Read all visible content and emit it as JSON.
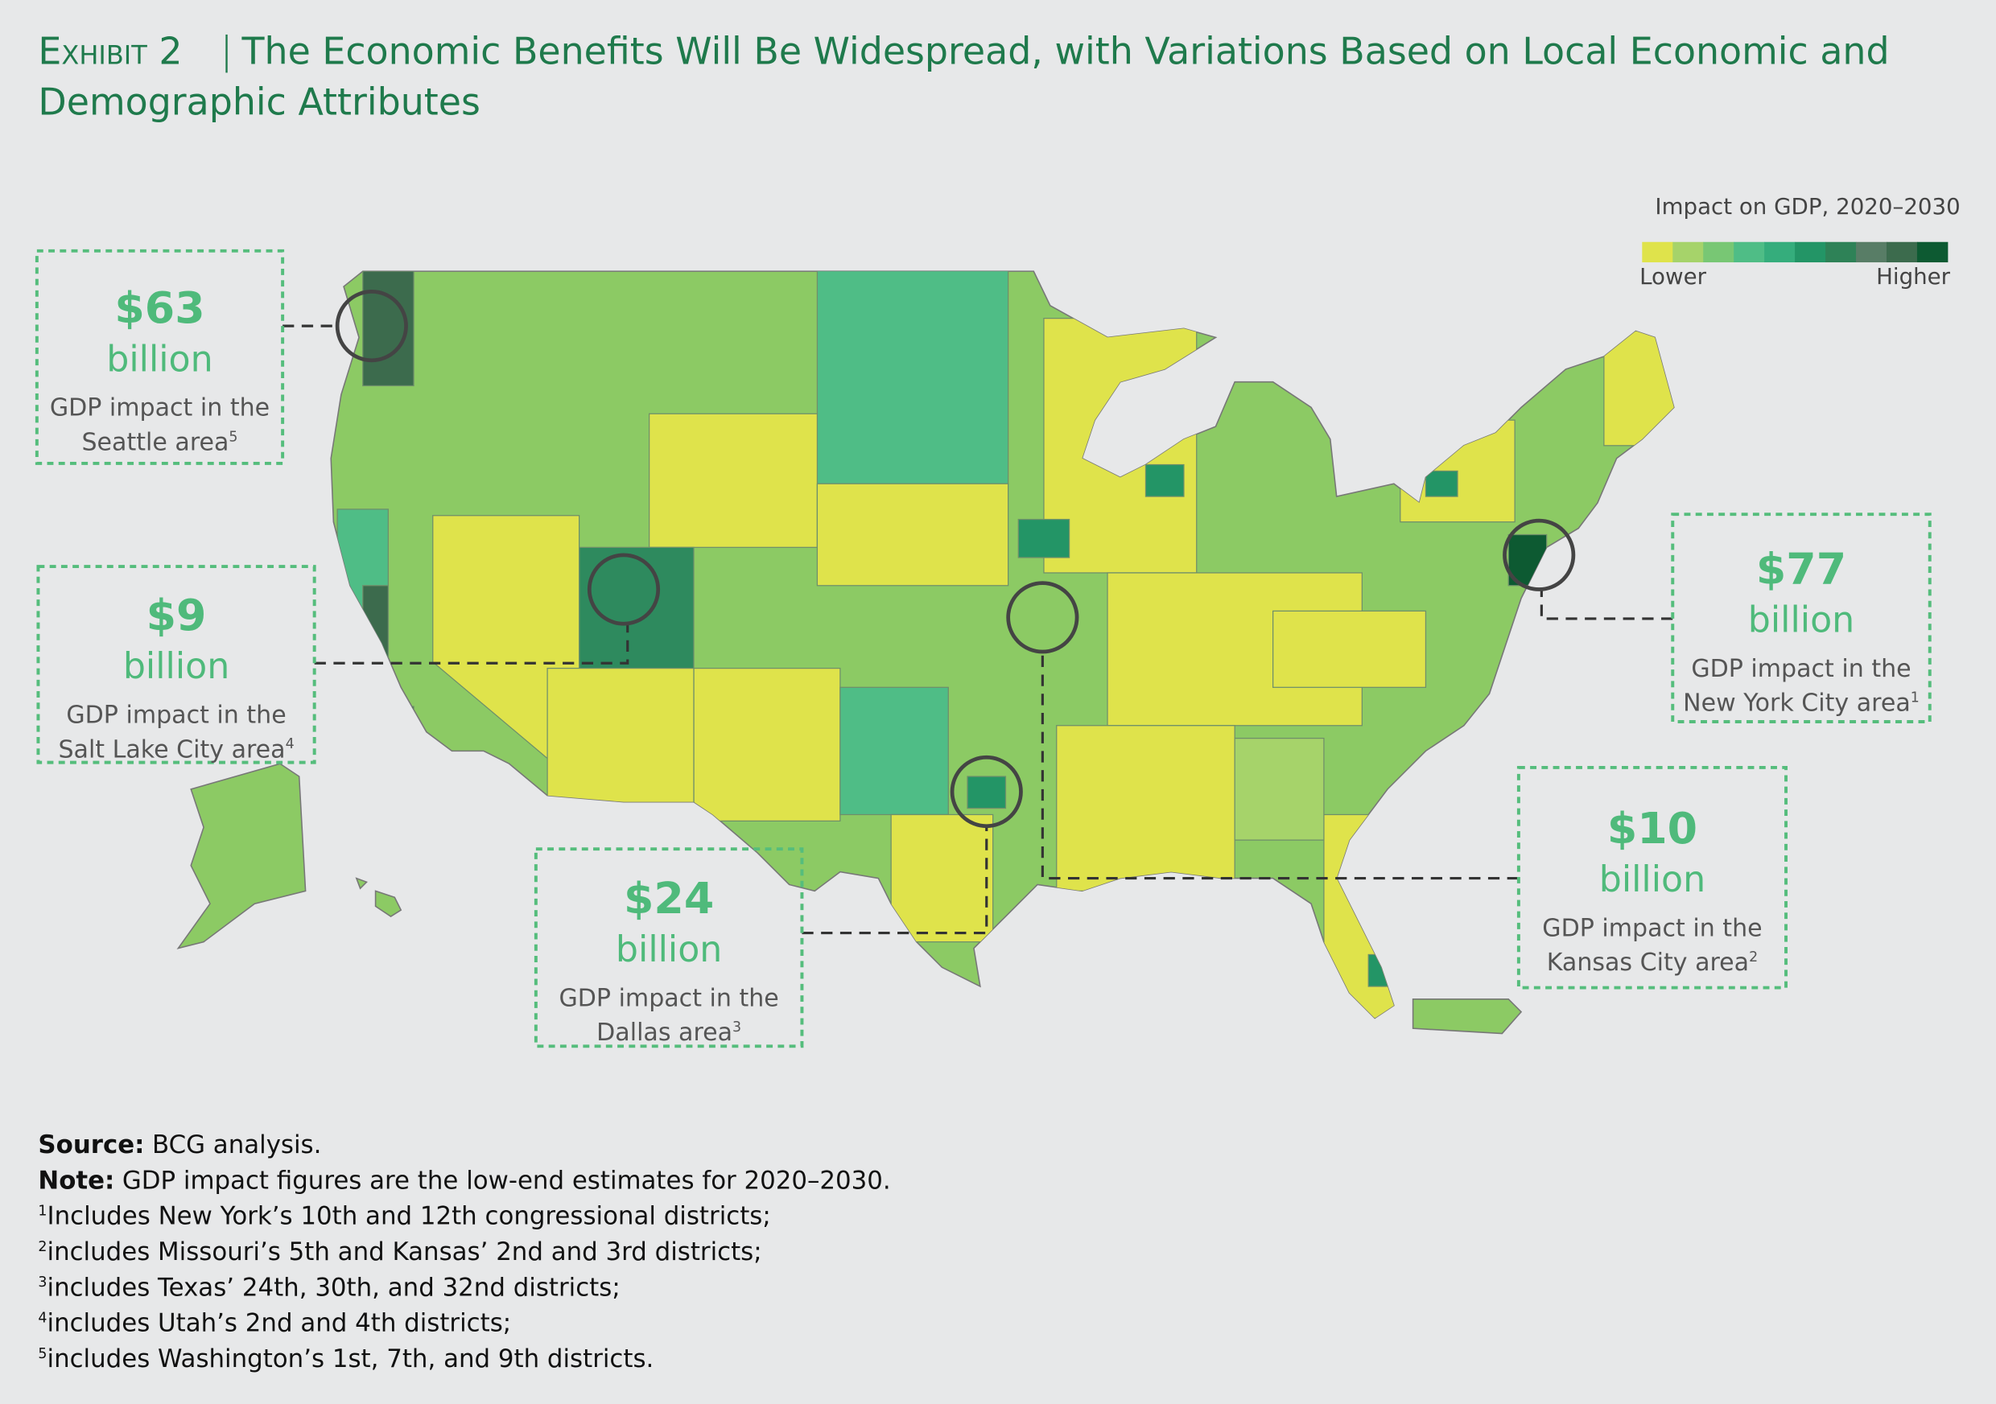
{
  "header": {
    "exhibit": "Exhibit 2",
    "title_line1": "The Economic Benefits Will Be Widespread, with Variations Based on Local Economic and",
    "title_line2": "Demographic Attributes"
  },
  "legend": {
    "title": "Impact on GDP, 2020–2030",
    "low": "Lower",
    "high": "Higher",
    "colors": [
      "#dfe34b",
      "#a6d36a",
      "#78c774",
      "#4fbd86",
      "#35ad7c",
      "#239566",
      "#2e8257",
      "#587d66",
      "#3c6b4d",
      "#0d5a32"
    ]
  },
  "callouts": [
    {
      "amount": "$63",
      "unit": "billion",
      "lines": [
        "GDP impact in the",
        "Seattle area"
      ],
      "note": "5"
    },
    {
      "amount": "$9",
      "unit": "billion",
      "lines": [
        "GDP impact in the",
        "Salt Lake City area"
      ],
      "note": "4"
    },
    {
      "amount": "$24",
      "unit": "billion",
      "lines": [
        "GDP impact in the",
        "Dallas area"
      ],
      "note": "3"
    },
    {
      "amount": "$10",
      "unit": "billion",
      "lines": [
        "GDP impact in the",
        "Kansas City area"
      ],
      "note": "2"
    },
    {
      "amount": "$77",
      "unit": "billion",
      "lines": [
        "GDP impact in the",
        "New York City area"
      ],
      "note": "1"
    }
  ],
  "footer": {
    "source_label": "Source:",
    "source": "BCG analysis.",
    "note_label": "Note:",
    "note": "GDP impact figures are the low-end estimates for 2020–2030.",
    "footnotes": [
      {
        "mark": "1",
        "text": "Includes New York’s 10th and 12th congressional districts;"
      },
      {
        "mark": "2",
        "text": "includes Missouri’s 5th and Kansas’ 2nd and 3rd districts;"
      },
      {
        "mark": "3",
        "text": "includes Texas’ 24th, 30th, and 32nd districts;"
      },
      {
        "mark": "4",
        "text": "includes Utah’s 2nd and 4th districts;"
      },
      {
        "mark": "5",
        "text": "includes Washington’s 1st, 7th, and 9th districts."
      }
    ]
  }
}
